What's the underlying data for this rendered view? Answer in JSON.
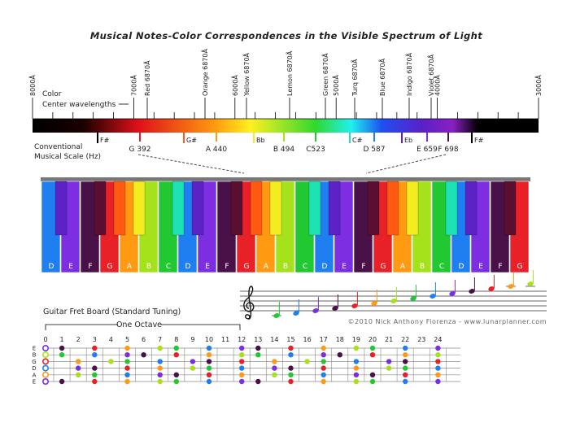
{
  "title": "Musical Notes-Color Correspondences in the Visible Spectrum of Light",
  "spectrum": {
    "wavelength_ticks": [
      "8000Å",
      "7000Å",
      "6000Å",
      "5000Å",
      "4000Å",
      "3000Å"
    ],
    "color_centers": [
      "Red 6870Å",
      "Orange 6870Å",
      "Yellow 6870Å",
      "Lemon 6870Å",
      "Green 6870Å",
      "Turq 6870Å",
      "Blue 6870Å",
      "Indigo 6870Å",
      "Violet 6870Å"
    ],
    "center_label": [
      "Color",
      "Center wavelengths"
    ],
    "scale_label": [
      "Conventional",
      "Musical Scale (Hz)"
    ],
    "notes": [
      "F#",
      "G 392",
      "G#",
      "A 440",
      "Bb",
      "B 494",
      "C523",
      "C#",
      "D 587",
      "Eb",
      "E 659",
      "F 698",
      "F#"
    ]
  },
  "piano": {
    "white_keys": [
      "D",
      "E",
      "F",
      "G",
      "A",
      "B",
      "C",
      "D",
      "E",
      "F",
      "G",
      "A",
      "B",
      "C",
      "D",
      "E",
      "F",
      "G",
      "A",
      "B",
      "C",
      "D",
      "E",
      "F",
      "G"
    ]
  },
  "guitar": {
    "title": "Guitar Fret Board (Standard Tuning)",
    "octave_label": "One Octave",
    "frets": [
      0,
      1,
      2,
      3,
      4,
      5,
      6,
      7,
      8,
      9,
      10,
      11,
      12,
      13,
      14,
      15,
      16,
      17,
      18,
      19,
      20,
      21,
      22,
      23,
      24
    ],
    "strings": [
      "E",
      "B",
      "G",
      "D",
      "A",
      "E"
    ]
  },
  "credit": "©2010 Nick Anthony Fiorenza - www.lunarplanner.com"
}
